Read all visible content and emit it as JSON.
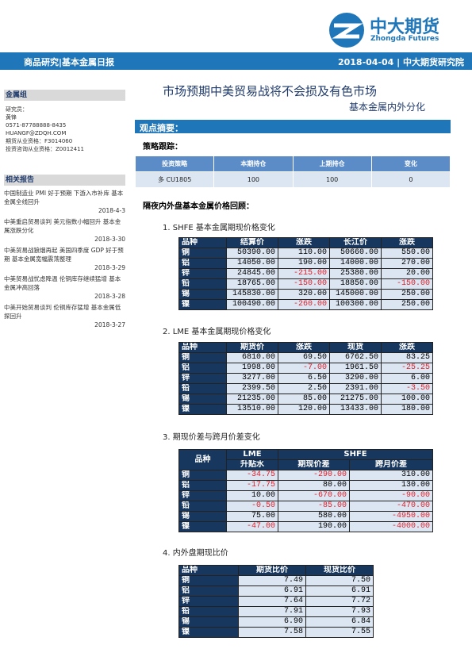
{
  "header": {
    "logo_cn": "中大期货",
    "logo_en": "Zhongda Futures",
    "left": "商品研究|基本金属日报",
    "right": "2018-04-04 | 中大期货研究院"
  },
  "sidebar": {
    "group": "金属组",
    "contact": [
      "研究员：",
      "黄锋",
      "0571-87788888-8435",
      "HUANGF@ZDQH.COM",
      "期货从业资格：F3014060",
      "投资咨询从业资格：Z0012411"
    ],
    "related_title": "相关报告",
    "reports": [
      {
        "title": "中国制造业 PMI 好于预期 下游入市补库 基本金属全线回升",
        "date": "2018-4-3"
      },
      {
        "title": "中美重启贸易谈判 美元指数小幅回升 基本金属涨跌分化",
        "date": "2018-3-30"
      },
      {
        "title": "中美贸易战狼烟再起 美国四季度 GDP 好于预期 基本金属宽幅震荡整理",
        "date": "2018-3-29"
      },
      {
        "title": "中美贸易战忧虑降温 伦铜库存继续猛增 基本金属冲高回落",
        "date": "2018-3-28"
      },
      {
        "title": "中美开始贸易谈判 伦铜库存猛增 基本金属低探回升",
        "date": "2018-3-27"
      }
    ]
  },
  "main": {
    "title": "市场预期中美贸易战将不会损及有色市场",
    "subtitle": "基本金属内外分化",
    "summary_heading": "观点摘要：",
    "strategy_heading": "策略跟踪：",
    "strategy_table": {
      "headers": [
        "投资策略",
        "本期持仓",
        "上期持仓",
        "变化"
      ],
      "rows": [
        [
          "多 CU1805",
          "100",
          "100",
          "0"
        ]
      ]
    },
    "review_heading": "隔夜内外盘基本金属价格回顾：",
    "tables": [
      {
        "caption": "1.  SHFE 基本金属期现价格变化",
        "headers": [
          "品种",
          "结算价",
          "涨跌",
          "长江价",
          "涨跌"
        ],
        "rows": [
          [
            "铜",
            "50390.00",
            "110.00",
            "50660.00",
            "550.00"
          ],
          [
            "铝",
            "14050.00",
            "190.00",
            "14000.00",
            "270.00"
          ],
          [
            "锌",
            "24845.00",
            "-215.00",
            "25380.00",
            "20.00"
          ],
          [
            "铅",
            "18765.00",
            "-150.00",
            "18850.00",
            "-150.00"
          ],
          [
            "锡",
            "145830.00",
            "320.00",
            "145000.00",
            "250.00"
          ],
          [
            "镍",
            "100490.00",
            "-260.00",
            "100300.00",
            "250.00"
          ]
        ]
      },
      {
        "caption": "2.  LME  基本金属期现价格变化",
        "headers": [
          "品种",
          "期货价",
          "涨跌",
          "现货",
          "涨跌"
        ],
        "rows": [
          [
            "铜",
            "6810.00",
            "69.50",
            "6762.50",
            "83.25"
          ],
          [
            "铝",
            "1998.00",
            "-7.00",
            "1961.50",
            "-25.25"
          ],
          [
            "锌",
            "3277.00",
            "6.50",
            "3290.00",
            "6.00"
          ],
          [
            "铅",
            "2399.50",
            "2.50",
            "2391.00",
            "-3.50"
          ],
          [
            "锡",
            "21235.00",
            "85.00",
            "21275.00",
            "100.00"
          ],
          [
            "镍",
            "13510.00",
            "120.00",
            "13433.00",
            "180.00"
          ]
        ]
      },
      {
        "caption": "3.  期现价差与跨月价差变化",
        "group_headers": [
          "品种",
          "LME",
          "SHFE"
        ],
        "headers": [
          "升贴水",
          "期现价差",
          "跨月价差"
        ],
        "rows": [
          [
            "铜",
            "-34.75",
            "-290.00",
            "310.00"
          ],
          [
            "铝",
            "-17.75",
            "80.00",
            "130.00"
          ],
          [
            "锌",
            "10.00",
            "-670.00",
            "-90.00"
          ],
          [
            "铅",
            "-0.50",
            "-85.00",
            "-470.00"
          ],
          [
            "锡",
            "75.00",
            "580.00",
            "-4950.00"
          ],
          [
            "镍",
            "-47.00",
            "190.00",
            "-4000.00"
          ]
        ]
      },
      {
        "caption": "4.  内外盘期现比价",
        "headers": [
          "品种",
          "期货比价",
          "现货比价"
        ],
        "rows": [
          [
            "铜",
            "7.49",
            "7.50"
          ],
          [
            "铝",
            "6.91",
            "6.91"
          ],
          [
            "锌",
            "7.64",
            "7.72"
          ],
          [
            "铅",
            "7.91",
            "7.93"
          ],
          [
            "锡",
            "6.90",
            "6.84"
          ],
          [
            "镍",
            "7.58",
            "7.55"
          ]
        ]
      }
    ]
  }
}
